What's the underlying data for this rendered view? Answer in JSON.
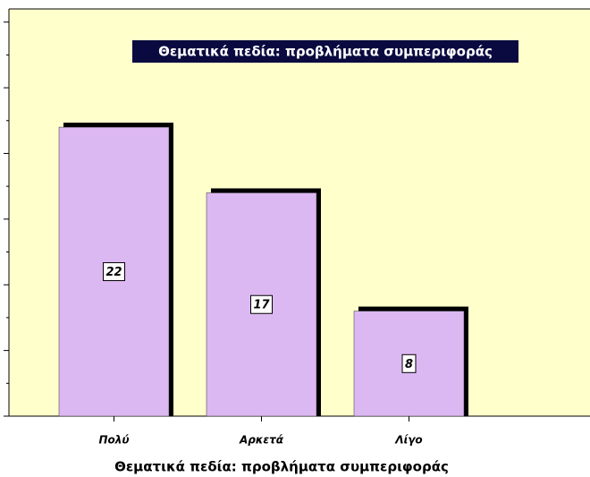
{
  "chart_data": {
    "type": "bar",
    "title": "Θεματικά πεδία: προβλήματα συμπεριφοράς",
    "x_label": "Θεματικά πεδία: προβλήματα συμπεριφοράς",
    "categories": [
      "Πολύ",
      "Αρκετά",
      "Λίγο"
    ],
    "values": [
      22,
      17,
      8
    ],
    "color": "#dcb8f2",
    "ylim": [
      0,
      31
    ],
    "yticks": [
      0,
      2.5,
      5,
      7.5,
      10,
      12.5,
      15,
      17.5,
      20,
      22.5,
      25,
      27.5,
      30
    ]
  }
}
